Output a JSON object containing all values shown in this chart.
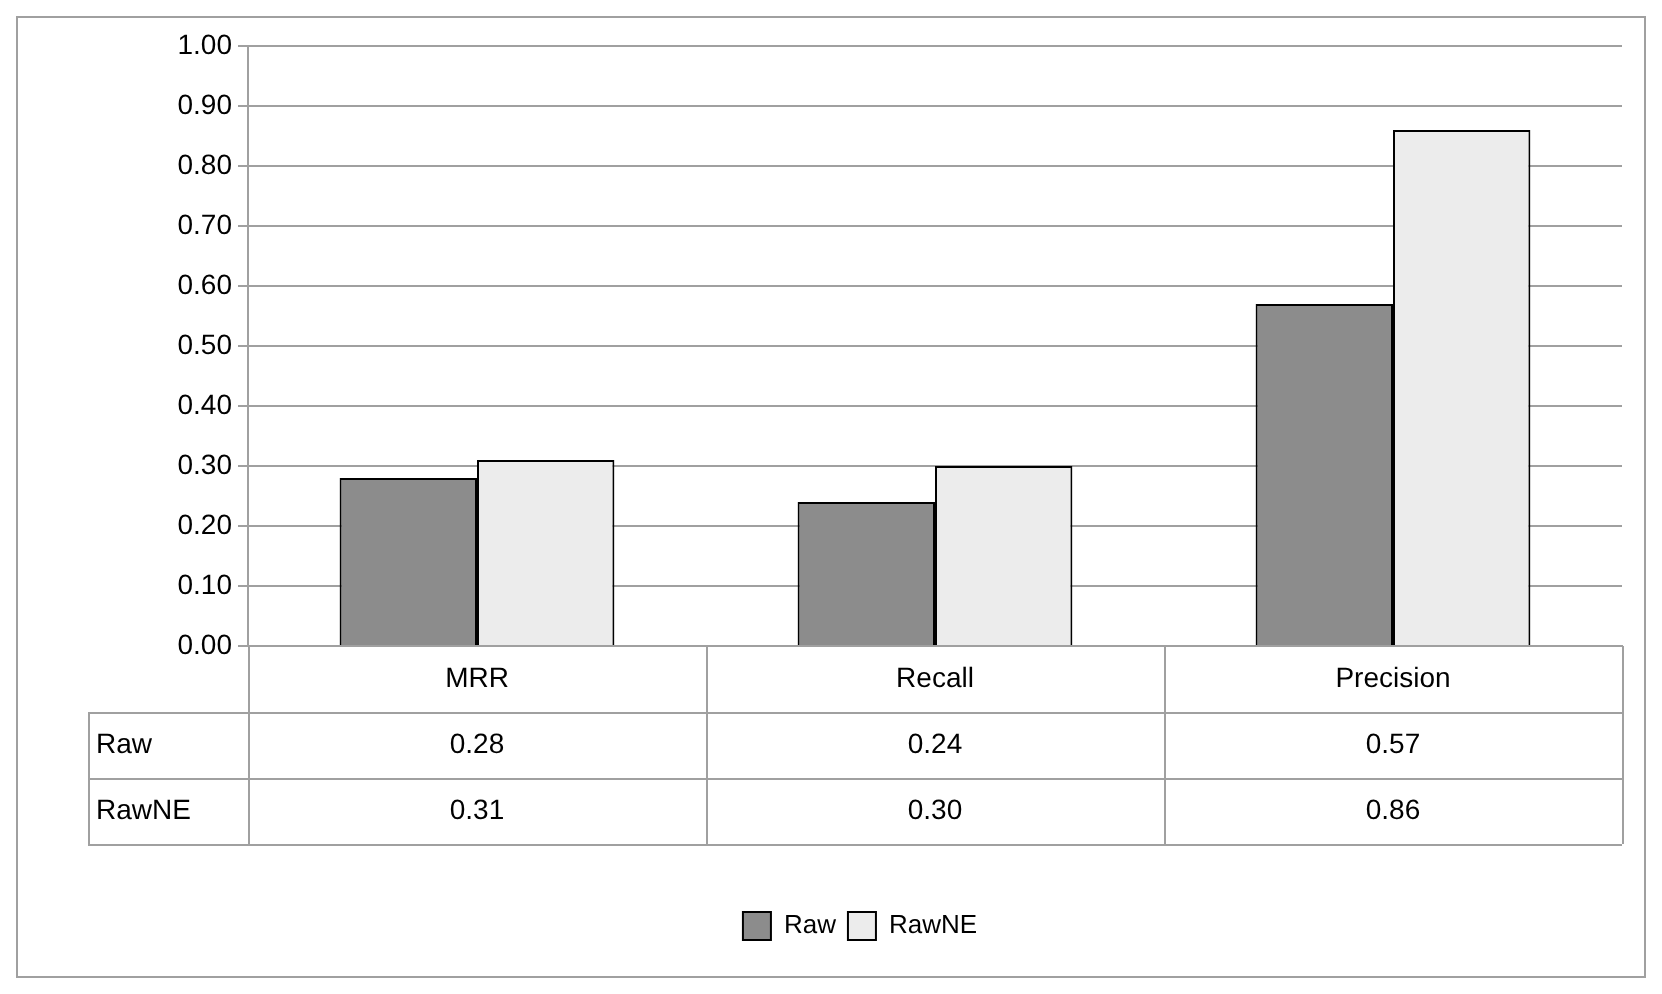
{
  "chart_data": {
    "type": "bar",
    "categories": [
      "MRR",
      "Recall",
      "Precision"
    ],
    "series": [
      {
        "name": "Raw",
        "color": "#8c8c8c",
        "values": [
          0.28,
          0.24,
          0.57
        ],
        "value_labels": [
          "0.28",
          "0.24",
          "0.57"
        ]
      },
      {
        "name": "RawNE",
        "color": "#ececec",
        "values": [
          0.31,
          0.3,
          0.86
        ],
        "value_labels": [
          "0.31",
          "0.30",
          "0.86"
        ]
      }
    ],
    "ylim": [
      0,
      1
    ],
    "yticks": [
      {
        "value": 0,
        "label": "0.00"
      },
      {
        "value": 0.1,
        "label": "0.10"
      },
      {
        "value": 0.2,
        "label": "0.20"
      },
      {
        "value": 0.3,
        "label": "0.30"
      },
      {
        "value": 0.4,
        "label": "0.40"
      },
      {
        "value": 0.5,
        "label": "0.50"
      },
      {
        "value": 0.6,
        "label": "0.60"
      },
      {
        "value": 0.7,
        "label": "0.70"
      },
      {
        "value": 0.8,
        "label": "0.80"
      },
      {
        "value": 0.9,
        "label": "0.90"
      },
      {
        "value": 1,
        "label": "1.00"
      }
    ],
    "grid": "y",
    "legend": "bottom"
  }
}
